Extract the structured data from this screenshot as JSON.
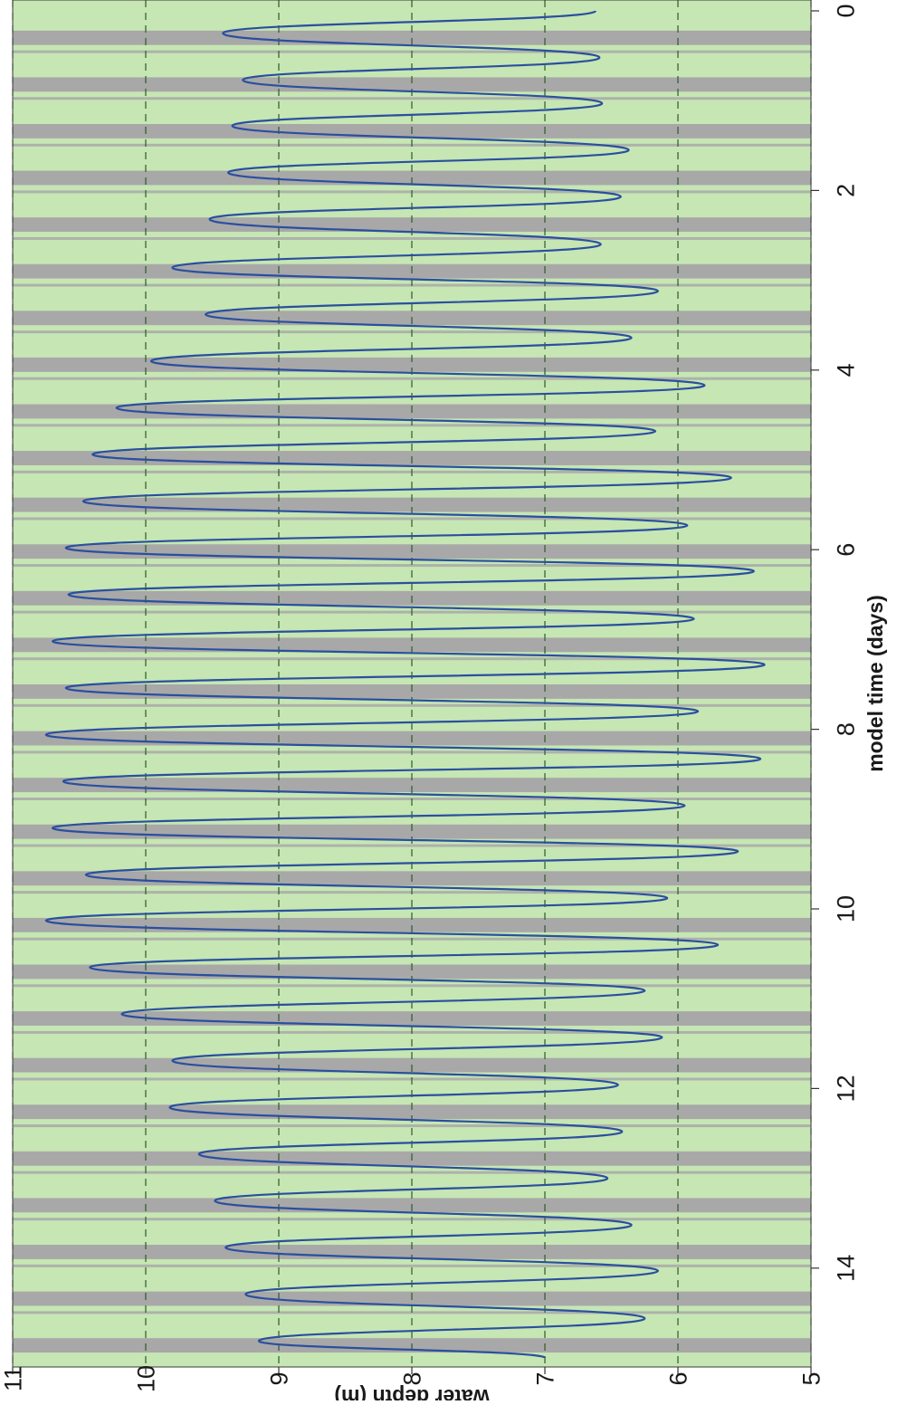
{
  "chart_data": {
    "type": "line",
    "orientation": "rotated-90-clockwise",
    "xlabel": "model time (days)",
    "ylabel": "water depth (m)",
    "xlim": [
      0,
      15
    ],
    "ylim": [
      5,
      11
    ],
    "xticks": [
      0,
      2,
      4,
      6,
      8,
      10,
      12,
      14
    ],
    "yticks": [
      5,
      6,
      7,
      8,
      9,
      10,
      11
    ],
    "xtick_labels": [
      "0",
      "2",
      "4",
      "6",
      "8",
      "10",
      "12",
      "14"
    ],
    "ytick_labels": [
      "5",
      "6",
      "7",
      "8",
      "9",
      "10",
      "11"
    ],
    "grid": "dashed horizontal at y ticks",
    "legend": "none",
    "colors": {
      "line": "#2b4f9e",
      "band_light": "#c6e6b4",
      "band_dark": "#a8a8a8",
      "grid": "#2e5a2a"
    },
    "series": [
      {
        "x": [
          0.0,
          0.25,
          0.52,
          0.77,
          1.03,
          1.28,
          1.55,
          1.8,
          2.07,
          2.32,
          2.6,
          2.86,
          3.12,
          3.38,
          3.64,
          3.9,
          4.17,
          4.42,
          4.68,
          4.94,
          5.2,
          5.46,
          5.73,
          5.98,
          6.24,
          6.5,
          6.77,
          7.02,
          7.28,
          7.54,
          7.8,
          8.06,
          8.33,
          8.58,
          8.85,
          9.1,
          9.36,
          9.62,
          9.88,
          10.13,
          10.4,
          10.65,
          10.91,
          11.17,
          11.43,
          11.69,
          11.96,
          12.21,
          12.48,
          12.73,
          13.0,
          13.25,
          13.52,
          13.77,
          14.03,
          14.29,
          14.56,
          14.81,
          15.0
        ],
        "y": [
          6.62,
          9.42,
          6.59,
          9.27,
          6.57,
          9.35,
          6.37,
          9.38,
          6.43,
          9.52,
          6.58,
          9.8,
          6.15,
          9.55,
          6.35,
          9.96,
          5.8,
          10.22,
          6.17,
          10.4,
          5.6,
          10.47,
          5.93,
          10.6,
          5.43,
          10.58,
          5.88,
          10.7,
          5.35,
          10.6,
          5.85,
          10.75,
          5.38,
          10.62,
          5.95,
          10.7,
          5.55,
          10.45,
          6.08,
          10.75,
          5.7,
          10.42,
          6.25,
          10.18,
          6.12,
          9.8,
          6.45,
          9.82,
          6.42,
          9.6,
          6.53,
          9.48,
          6.35,
          9.4,
          6.15,
          9.25,
          6.25,
          9.15,
          7.0
        ]
      }
    ]
  }
}
